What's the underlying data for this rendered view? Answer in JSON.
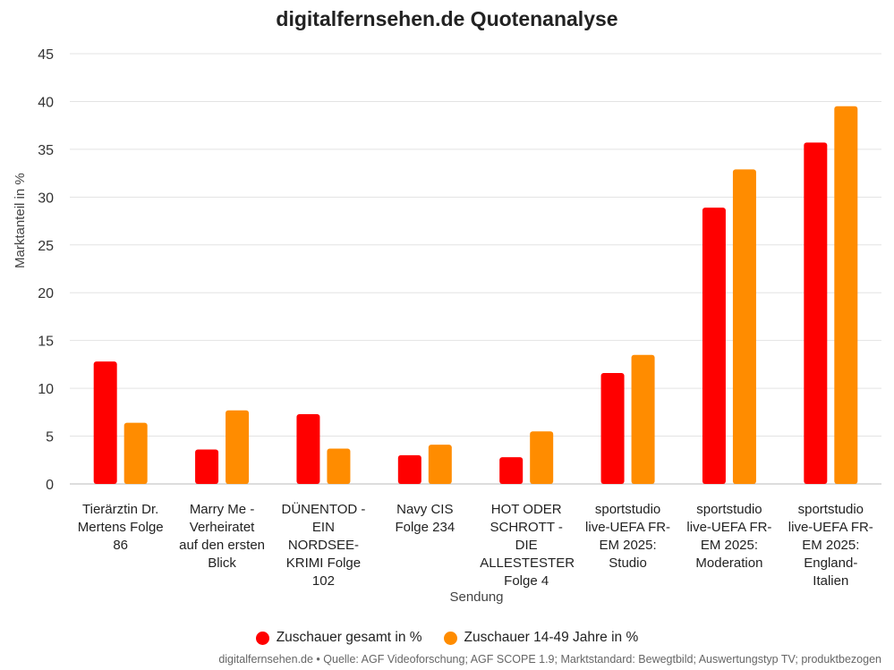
{
  "chart_data": {
    "type": "bar",
    "title": "digitalfernsehen.de Quotenanalyse",
    "xlabel": "Sendung",
    "ylabel": "Marktanteil in %",
    "ylim": [
      0,
      45
    ],
    "yticks": [
      0,
      5,
      10,
      15,
      20,
      25,
      30,
      35,
      40,
      45
    ],
    "grid": true,
    "legend_position": "bottom",
    "categories": [
      [
        "Tierärztin Dr.",
        "Mertens Folge",
        "86"
      ],
      [
        "Marry Me -",
        "Verheiratet",
        "auf den ersten",
        "Blick"
      ],
      [
        "DÜNENTOD -",
        "EIN",
        "NORDSEE-",
        "KRIMI Folge",
        "102"
      ],
      [
        "Navy CIS",
        "Folge 234"
      ],
      [
        "HOT ODER",
        "SCHROTT -",
        "DIE",
        "ALLESTESTER",
        "Folge 4"
      ],
      [
        "sportstudio",
        "live-UEFA FR-",
        "EM 2025:",
        "Studio"
      ],
      [
        "sportstudio",
        "live-UEFA FR-",
        "EM 2025:",
        "Moderation"
      ],
      [
        "sportstudio",
        "live-UEFA FR-",
        "EM 2025:",
        "England-",
        "Italien"
      ]
    ],
    "series": [
      {
        "name": "Zuschauer gesamt in %",
        "color": "#ff0000",
        "values": [
          12.8,
          3.6,
          7.3,
          3.0,
          2.8,
          11.6,
          28.9,
          35.7
        ]
      },
      {
        "name": "Zuschauer 14-49 Jahre in %",
        "color": "#ff8c00",
        "values": [
          6.4,
          7.7,
          3.7,
          4.1,
          5.5,
          13.5,
          32.9,
          39.5
        ]
      }
    ]
  },
  "footer": {
    "source": "digitalfernsehen.de • Quelle: AGF Videoforschung; AGF SCOPE 1.9; Marktstandard: Bewegtbild; Auswertungstyp TV; produktbezogen"
  }
}
